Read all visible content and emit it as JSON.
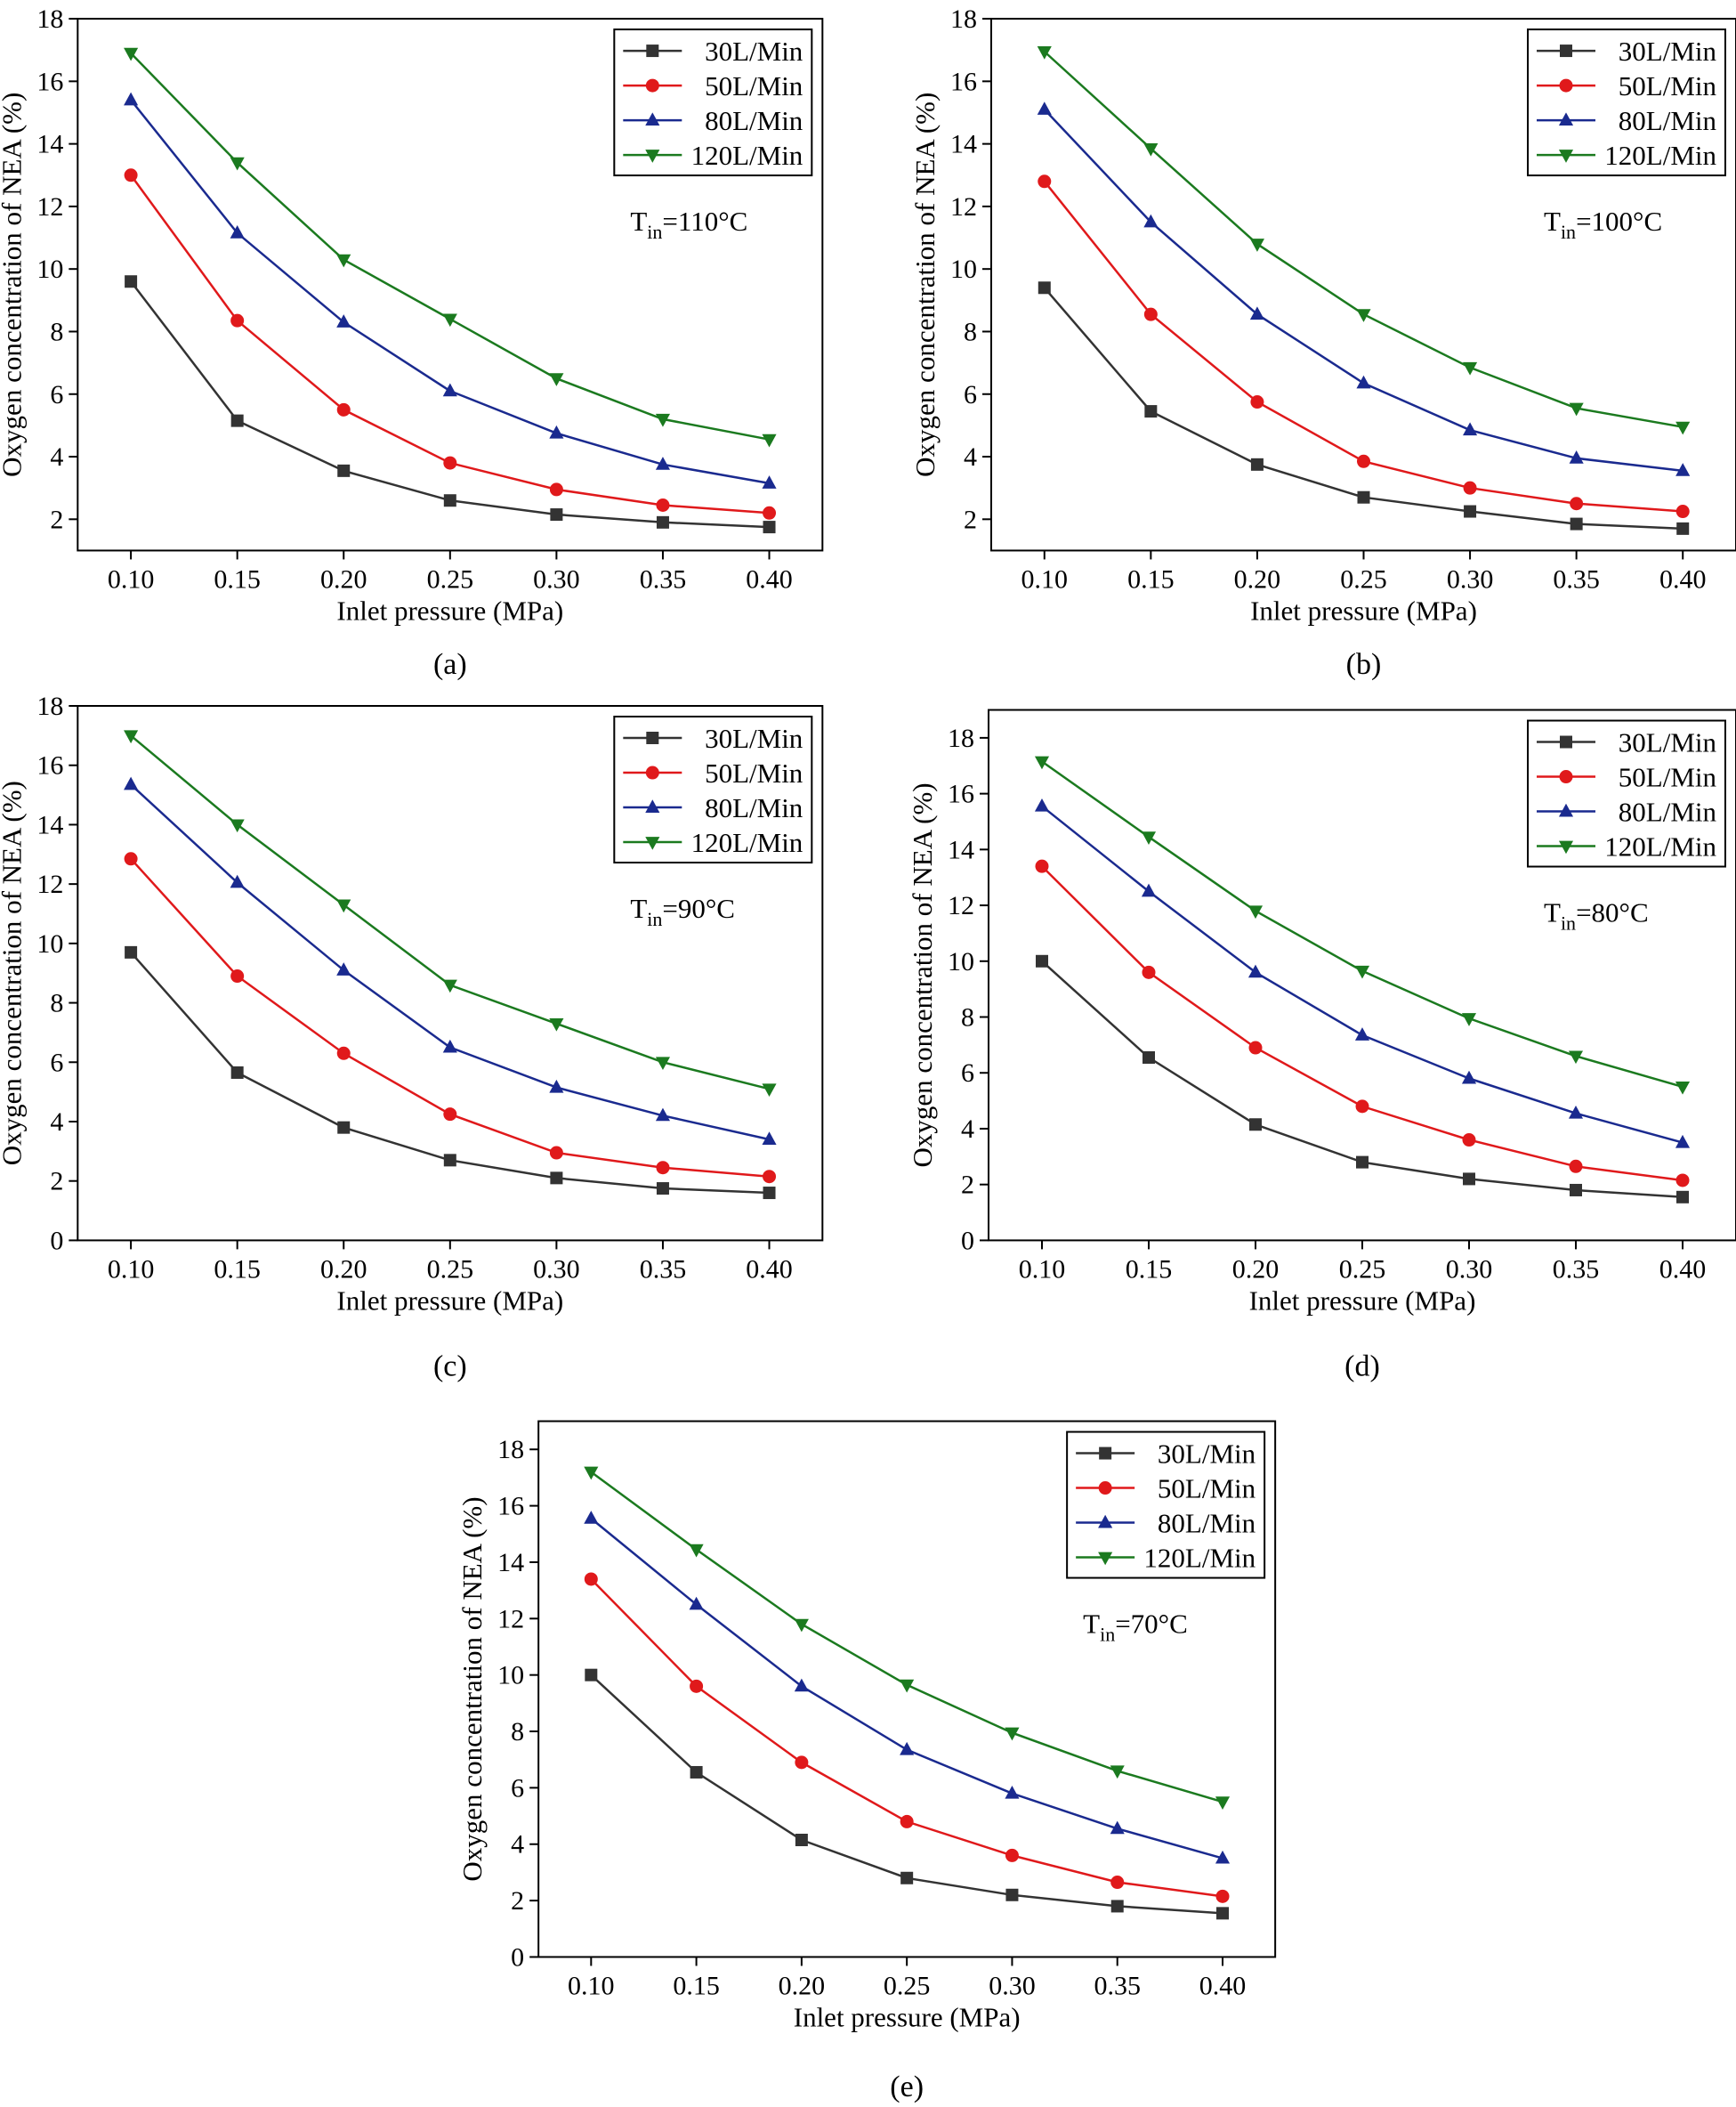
{
  "figure": {
    "series_styles": [
      {
        "name": "30L/Min",
        "color": "#333333",
        "marker": "square"
      },
      {
        "name": "50L/Min",
        "color": "#e0191b",
        "marker": "circle"
      },
      {
        "name": "80L/Min",
        "color": "#1a2a8f",
        "marker": "triangle-up"
      },
      {
        "name": "120L/Min",
        "color": "#1b7a1f",
        "marker": "triangle-down"
      }
    ]
  },
  "chart_data": [
    {
      "type": "line",
      "panel_label": "(a)",
      "title": "",
      "annotation": {
        "base": "T",
        "sub": "in",
        "rest": "=110°C"
      },
      "xlabel": "Inlet pressure (MPa)",
      "ylabel": "Oxygen concentration of NEA (%)",
      "x": [
        0.1,
        0.15,
        0.2,
        0.25,
        0.3,
        0.35,
        0.4
      ],
      "x_tick_labels": [
        "0.10",
        "0.15",
        "0.20",
        "0.25",
        "0.30",
        "0.35",
        "0.40"
      ],
      "xlim": [
        0.075,
        0.425
      ],
      "ylim": [
        1.0,
        18.0
      ],
      "y_ticks": [
        2,
        4,
        6,
        8,
        10,
        12,
        14,
        16,
        18
      ],
      "y_tick_labels": [
        "2",
        "4",
        "6",
        "8",
        "10",
        "12",
        "14",
        "16",
        "18"
      ],
      "legend_position": "top-right",
      "series": [
        {
          "name": "30L/Min",
          "values": [
            9.6,
            5.15,
            3.55,
            2.6,
            2.15,
            1.9,
            1.75
          ]
        },
        {
          "name": "50L/Min",
          "values": [
            13.0,
            8.35,
            5.5,
            3.8,
            2.95,
            2.45,
            2.2
          ]
        },
        {
          "name": "80L/Min",
          "values": [
            15.4,
            11.15,
            8.3,
            6.1,
            4.75,
            3.75,
            3.15
          ]
        },
        {
          "name": "120L/Min",
          "values": [
            16.9,
            13.4,
            10.3,
            8.4,
            6.5,
            5.2,
            4.55
          ]
        }
      ]
    },
    {
      "type": "line",
      "panel_label": "(b)",
      "title": "",
      "annotation": {
        "base": "T",
        "sub": "in",
        "rest": "=100°C"
      },
      "xlabel": "Inlet pressure (MPa)",
      "ylabel": "Oxygen concentration of NEA (%)",
      "x": [
        0.1,
        0.15,
        0.2,
        0.25,
        0.3,
        0.35,
        0.4
      ],
      "x_tick_labels": [
        "0.10",
        "0.15",
        "0.20",
        "0.25",
        "0.30",
        "0.35",
        "0.40"
      ],
      "xlim": [
        0.075,
        0.425
      ],
      "ylim": [
        1.0,
        18.0
      ],
      "y_ticks": [
        2,
        4,
        6,
        8,
        10,
        12,
        14,
        16,
        18
      ],
      "y_tick_labels": [
        "2",
        "4",
        "6",
        "8",
        "10",
        "12",
        "14",
        "16",
        "18"
      ],
      "legend_position": "top-right",
      "series": [
        {
          "name": "30L/Min",
          "values": [
            9.4,
            5.45,
            3.75,
            2.7,
            2.25,
            1.85,
            1.7
          ]
        },
        {
          "name": "50L/Min",
          "values": [
            12.8,
            8.55,
            5.75,
            3.85,
            3.0,
            2.5,
            2.25
          ]
        },
        {
          "name": "80L/Min",
          "values": [
            15.1,
            11.5,
            8.55,
            6.35,
            4.85,
            3.95,
            3.55
          ]
        },
        {
          "name": "120L/Min",
          "values": [
            16.95,
            13.85,
            10.8,
            8.55,
            6.85,
            5.55,
            4.95
          ]
        }
      ]
    },
    {
      "type": "line",
      "panel_label": "(c)",
      "title": "",
      "annotation": {
        "base": "T",
        "sub": "in",
        "rest": "=90°C"
      },
      "xlabel": "Inlet pressure (MPa)",
      "ylabel": "Oxygen concentration of NEA (%)",
      "x": [
        0.1,
        0.15,
        0.2,
        0.25,
        0.3,
        0.35,
        0.4
      ],
      "x_tick_labels": [
        "0.10",
        "0.15",
        "0.20",
        "0.25",
        "0.30",
        "0.35",
        "0.40"
      ],
      "xlim": [
        0.075,
        0.425
      ],
      "ylim": [
        0,
        18.0
      ],
      "y_ticks": [
        0,
        2,
        4,
        6,
        8,
        10,
        12,
        14,
        16,
        18
      ],
      "y_tick_labels": [
        "0",
        "2",
        "4",
        "6",
        "8",
        "10",
        "12",
        "14",
        "16",
        "18"
      ],
      "legend_position": "top-right",
      "series": [
        {
          "name": "30L/Min",
          "values": [
            9.7,
            5.65,
            3.8,
            2.7,
            2.1,
            1.75,
            1.6
          ]
        },
        {
          "name": "50L/Min",
          "values": [
            12.85,
            8.9,
            6.3,
            4.25,
            2.95,
            2.45,
            2.15
          ]
        },
        {
          "name": "80L/Min",
          "values": [
            15.35,
            12.05,
            9.1,
            6.5,
            5.15,
            4.2,
            3.4
          ]
        },
        {
          "name": "120L/Min",
          "values": [
            17.0,
            14.0,
            11.3,
            8.6,
            7.3,
            6.0,
            5.1
          ]
        }
      ]
    },
    {
      "type": "line",
      "panel_label": "(d)",
      "title": "",
      "annotation": {
        "base": "T",
        "sub": "in",
        "rest": "=80°C"
      },
      "xlabel": "Inlet pressure (MPa)",
      "ylabel": "Oxygen concentration of NEA (%)",
      "x": [
        0.1,
        0.15,
        0.2,
        0.25,
        0.3,
        0.35,
        0.4
      ],
      "x_tick_labels": [
        "0.10",
        "0.15",
        "0.20",
        "0.25",
        "0.30",
        "0.35",
        "0.40"
      ],
      "xlim": [
        0.075,
        0.425
      ],
      "ylim": [
        0,
        19.0
      ],
      "y_ticks": [
        0,
        2,
        4,
        6,
        8,
        10,
        12,
        14,
        16,
        18
      ],
      "y_tick_labels": [
        "0",
        "2",
        "4",
        "6",
        "8",
        "10",
        "12",
        "14",
        "16",
        "18"
      ],
      "legend_position": "top-right",
      "series": [
        {
          "name": "30L/Min",
          "values": [
            10.0,
            6.55,
            4.15,
            2.8,
            2.2,
            1.8,
            1.55
          ]
        },
        {
          "name": "50L/Min",
          "values": [
            13.4,
            9.6,
            6.9,
            4.8,
            3.6,
            2.65,
            2.15
          ]
        },
        {
          "name": "80L/Min",
          "values": [
            15.55,
            12.5,
            9.6,
            7.35,
            5.8,
            4.55,
            3.5
          ]
        },
        {
          "name": "120L/Min",
          "values": [
            17.15,
            14.45,
            11.8,
            9.65,
            7.95,
            6.6,
            5.5
          ]
        }
      ]
    },
    {
      "type": "line",
      "panel_label": "(e)",
      "title": "",
      "annotation": {
        "base": "T",
        "sub": "in",
        "rest": "=70°C"
      },
      "xlabel": "Inlet pressure (MPa)",
      "ylabel": "Oxygen concentration of NEA (%)",
      "x": [
        0.1,
        0.15,
        0.2,
        0.25,
        0.3,
        0.35,
        0.4
      ],
      "x_tick_labels": [
        "0.10",
        "0.15",
        "0.20",
        "0.25",
        "0.30",
        "0.35",
        "0.40"
      ],
      "xlim": [
        0.075,
        0.425
      ],
      "ylim": [
        0,
        19.0
      ],
      "y_ticks": [
        0,
        2,
        4,
        6,
        8,
        10,
        12,
        14,
        16,
        18
      ],
      "y_tick_labels": [
        "0",
        "2",
        "4",
        "6",
        "8",
        "10",
        "12",
        "14",
        "16",
        "18"
      ],
      "legend_position": "top-right",
      "series": [
        {
          "name": "30L/Min",
          "values": [
            10.0,
            6.55,
            4.15,
            2.8,
            2.2,
            1.8,
            1.55
          ]
        },
        {
          "name": "50L/Min",
          "values": [
            13.4,
            9.6,
            6.9,
            4.8,
            3.6,
            2.65,
            2.15
          ]
        },
        {
          "name": "80L/Min",
          "values": [
            15.55,
            12.5,
            9.6,
            7.35,
            5.8,
            4.55,
            3.5
          ]
        },
        {
          "name": "120L/Min",
          "values": [
            17.2,
            14.45,
            11.8,
            9.65,
            7.95,
            6.6,
            5.5
          ]
        }
      ]
    }
  ]
}
